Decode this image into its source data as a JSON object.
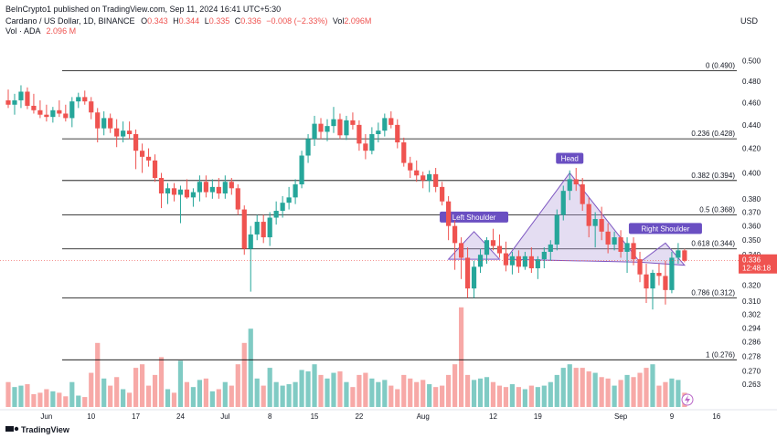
{
  "header": {
    "publisher_line": "BeInCrypto1 published on TradingView.com, Sep 11, 2024 16:41 UTC+5:30",
    "symbol": "Cardano / US Dollar, 1D, BINANCE",
    "ohlc": [
      {
        "key": "O",
        "value": "0.343"
      },
      {
        "key": "H",
        "value": "0.344"
      },
      {
        "key": "L",
        "value": "0.335"
      },
      {
        "key": "C",
        "value": "0.336"
      }
    ],
    "change": "−0.008 (−2.33%)",
    "vol_label": "Vol",
    "vol_value": "2.096M",
    "vol_series_label": "Vol · ADA",
    "vol_series_value": "2.096 M"
  },
  "currency_label": "USD",
  "footer": {
    "brand": "TradingView"
  },
  "colors": {
    "up": "#26a69a",
    "down": "#ef5350",
    "up_volume": "#80cbc4",
    "down_volume": "#f7a9a7",
    "fib_line": "#000000",
    "pattern_fill": "#b39ddb",
    "pattern_stroke": "#7e57c2",
    "label_bg": "#6a4fc2",
    "price_tag": "#ef5350"
  },
  "icons": {
    "logo": "tradingview-logo-icon",
    "indicator": "lightning-icon"
  },
  "chart_data": {
    "type": "candlestick",
    "title": "Cardano / US Dollar, 1D, BINANCE",
    "xlabel": "",
    "ylabel": "USD",
    "y_scale": "log",
    "ylim": [
      0.255,
      0.515
    ],
    "x_ticks": [
      "Jun",
      "10",
      "17",
      "24",
      "Jul",
      "8",
      "15",
      "22",
      "Aug",
      "12",
      "19",
      "Sep",
      "9",
      "16"
    ],
    "y_ticks": [
      "0.500",
      "0.480",
      "0.460",
      "0.440",
      "0.420",
      "0.400",
      "0.380",
      "0.370",
      "0.360",
      "0.350",
      "0.340",
      "0.320",
      "0.310",
      "0.302",
      "0.294",
      "0.286",
      "0.278",
      "0.270",
      "0.263"
    ],
    "current_price": {
      "price": "0.336",
      "countdown": "12:48:18"
    },
    "fib_levels": [
      {
        "ratio": "0",
        "value": 0.49,
        "label": "0 (0.490)"
      },
      {
        "ratio": "0.236",
        "value": 0.428,
        "label": "0.236 (0.428)"
      },
      {
        "ratio": "0.382",
        "value": 0.394,
        "label": "0.382 (0.394)"
      },
      {
        "ratio": "0.5",
        "value": 0.368,
        "label": "0.5 (0.368)"
      },
      {
        "ratio": "0.618",
        "value": 0.344,
        "label": "0.618 (0.344)"
      },
      {
        "ratio": "0.786",
        "value": 0.312,
        "label": "0.786 (0.312)"
      },
      {
        "ratio": "1",
        "value": 0.276,
        "label": "1 (0.276)"
      }
    ],
    "pattern": {
      "name": "head-and-shoulders",
      "labels": [
        "Left Shoulder",
        "Head",
        "Right Shoulder"
      ],
      "left_shoulder": {
        "from": {
          "x": "2024-08-05",
          "y": 0.337
        },
        "peak": {
          "x": "2024-08-09",
          "y": 0.356
        },
        "to": {
          "x": "2024-08-13",
          "y": 0.337
        }
      },
      "head": {
        "from": {
          "x": "2024-08-14",
          "y": 0.337
        },
        "peak": {
          "x": "2024-08-24",
          "y": 0.4
        },
        "to": {
          "x": "2024-09-04",
          "y": 0.335
        }
      },
      "right_shoulder": {
        "from": {
          "x": "2024-09-04",
          "y": 0.335
        },
        "peak": {
          "x": "2024-09-08",
          "y": 0.348
        },
        "to": {
          "x": "2024-09-11",
          "y": 0.333
        }
      }
    },
    "candles": [
      [
        "2024-05-28",
        0.462,
        0.472,
        0.455,
        0.458,
        35
      ],
      [
        "2024-05-29",
        0.458,
        0.468,
        0.449,
        0.462,
        28
      ],
      [
        "2024-05-30",
        0.462,
        0.476,
        0.455,
        0.47,
        30
      ],
      [
        "2024-05-31",
        0.47,
        0.474,
        0.454,
        0.457,
        32
      ],
      [
        "2024-06-01",
        0.457,
        0.468,
        0.45,
        0.453,
        18
      ],
      [
        "2024-06-02",
        0.453,
        0.462,
        0.446,
        0.449,
        20
      ],
      [
        "2024-06-03",
        0.449,
        0.458,
        0.443,
        0.447,
        25
      ],
      [
        "2024-06-04",
        0.447,
        0.456,
        0.442,
        0.453,
        22
      ],
      [
        "2024-06-05",
        0.453,
        0.462,
        0.447,
        0.45,
        20
      ],
      [
        "2024-06-06",
        0.45,
        0.458,
        0.443,
        0.446,
        15
      ],
      [
        "2024-06-07",
        0.446,
        0.465,
        0.438,
        0.461,
        35
      ],
      [
        "2024-06-08",
        0.461,
        0.469,
        0.455,
        0.465,
        16
      ],
      [
        "2024-06-09",
        0.465,
        0.471,
        0.458,
        0.461,
        14
      ],
      [
        "2024-06-10",
        0.461,
        0.465,
        0.445,
        0.451,
        48
      ],
      [
        "2024-06-11",
        0.451,
        0.455,
        0.425,
        0.437,
        90
      ],
      [
        "2024-06-12",
        0.437,
        0.452,
        0.431,
        0.446,
        40
      ],
      [
        "2024-06-13",
        0.446,
        0.45,
        0.433,
        0.437,
        30
      ],
      [
        "2024-06-14",
        0.437,
        0.445,
        0.421,
        0.43,
        42
      ],
      [
        "2024-06-15",
        0.43,
        0.443,
        0.425,
        0.435,
        25
      ],
      [
        "2024-06-16",
        0.435,
        0.443,
        0.428,
        0.432,
        20
      ],
      [
        "2024-06-17",
        0.432,
        0.436,
        0.403,
        0.418,
        55
      ],
      [
        "2024-06-18",
        0.418,
        0.424,
        0.4,
        0.413,
        60
      ],
      [
        "2024-06-19",
        0.413,
        0.42,
        0.405,
        0.41,
        30
      ],
      [
        "2024-06-20",
        0.41,
        0.415,
        0.393,
        0.396,
        45
      ],
      [
        "2024-06-21",
        0.396,
        0.4,
        0.373,
        0.384,
        70
      ],
      [
        "2024-06-22",
        0.384,
        0.392,
        0.376,
        0.388,
        25
      ],
      [
        "2024-06-23",
        0.388,
        0.392,
        0.378,
        0.383,
        20
      ],
      [
        "2024-06-24",
        0.383,
        0.39,
        0.362,
        0.387,
        65
      ],
      [
        "2024-06-25",
        0.387,
        0.395,
        0.38,
        0.381,
        35
      ],
      [
        "2024-06-26",
        0.381,
        0.388,
        0.374,
        0.385,
        28
      ],
      [
        "2024-06-27",
        0.385,
        0.398,
        0.378,
        0.393,
        38
      ],
      [
        "2024-06-28",
        0.393,
        0.398,
        0.381,
        0.385,
        40
      ],
      [
        "2024-06-29",
        0.385,
        0.395,
        0.38,
        0.389,
        22
      ],
      [
        "2024-06-30",
        0.389,
        0.396,
        0.38,
        0.384,
        25
      ],
      [
        "2024-07-01",
        0.384,
        0.398,
        0.38,
        0.393,
        35
      ],
      [
        "2024-07-02",
        0.393,
        0.396,
        0.383,
        0.388,
        30
      ],
      [
        "2024-07-03",
        0.388,
        0.391,
        0.368,
        0.372,
        60
      ],
      [
        "2024-07-04",
        0.372,
        0.375,
        0.34,
        0.344,
        90
      ],
      [
        "2024-07-05",
        0.344,
        0.36,
        0.316,
        0.354,
        110
      ],
      [
        "2024-07-06",
        0.354,
        0.368,
        0.35,
        0.363,
        40
      ],
      [
        "2024-07-07",
        0.363,
        0.368,
        0.348,
        0.352,
        30
      ],
      [
        "2024-07-08",
        0.352,
        0.37,
        0.346,
        0.366,
        55
      ],
      [
        "2024-07-09",
        0.366,
        0.378,
        0.361,
        0.371,
        35
      ],
      [
        "2024-07-10",
        0.371,
        0.382,
        0.366,
        0.377,
        30
      ],
      [
        "2024-07-11",
        0.377,
        0.389,
        0.372,
        0.381,
        32
      ],
      [
        "2024-07-12",
        0.381,
        0.395,
        0.376,
        0.391,
        35
      ],
      [
        "2024-07-13",
        0.391,
        0.418,
        0.388,
        0.414,
        52
      ],
      [
        "2024-07-14",
        0.414,
        0.432,
        0.408,
        0.428,
        50
      ],
      [
        "2024-07-15",
        0.428,
        0.448,
        0.422,
        0.441,
        60
      ],
      [
        "2024-07-16",
        0.441,
        0.446,
        0.428,
        0.434,
        45
      ],
      [
        "2024-07-17",
        0.434,
        0.445,
        0.426,
        0.439,
        40
      ],
      [
        "2024-07-18",
        0.439,
        0.456,
        0.433,
        0.445,
        48
      ],
      [
        "2024-07-19",
        0.445,
        0.45,
        0.428,
        0.431,
        50
      ],
      [
        "2024-07-20",
        0.431,
        0.448,
        0.427,
        0.444,
        35
      ],
      [
        "2024-07-21",
        0.444,
        0.451,
        0.436,
        0.44,
        28
      ],
      [
        "2024-07-22",
        0.44,
        0.444,
        0.418,
        0.424,
        45
      ],
      [
        "2024-07-23",
        0.424,
        0.432,
        0.411,
        0.418,
        48
      ],
      [
        "2024-07-24",
        0.418,
        0.438,
        0.415,
        0.432,
        40
      ],
      [
        "2024-07-25",
        0.432,
        0.442,
        0.425,
        0.435,
        35
      ],
      [
        "2024-07-26",
        0.435,
        0.45,
        0.43,
        0.446,
        38
      ],
      [
        "2024-07-27",
        0.446,
        0.452,
        0.437,
        0.44,
        30
      ],
      [
        "2024-07-28",
        0.44,
        0.445,
        0.42,
        0.425,
        25
      ],
      [
        "2024-07-29",
        0.425,
        0.429,
        0.405,
        0.408,
        45
      ],
      [
        "2024-07-30",
        0.408,
        0.413,
        0.396,
        0.402,
        40
      ],
      [
        "2024-07-31",
        0.402,
        0.41,
        0.393,
        0.398,
        35
      ],
      [
        "2024-08-01",
        0.398,
        0.401,
        0.388,
        0.394,
        38
      ],
      [
        "2024-08-02",
        0.394,
        0.402,
        0.385,
        0.399,
        32
      ],
      [
        "2024-08-03",
        0.399,
        0.404,
        0.385,
        0.389,
        28
      ],
      [
        "2024-08-04",
        0.389,
        0.393,
        0.375,
        0.378,
        30
      ],
      [
        "2024-08-05",
        0.378,
        0.382,
        0.35,
        0.36,
        45
      ],
      [
        "2024-08-06",
        0.36,
        0.364,
        0.33,
        0.348,
        60
      ],
      [
        "2024-08-07",
        0.348,
        0.352,
        0.324,
        0.338,
        140
      ],
      [
        "2024-08-08",
        0.338,
        0.345,
        0.312,
        0.318,
        45
      ],
      [
        "2024-08-09",
        0.318,
        0.336,
        0.312,
        0.332,
        38
      ],
      [
        "2024-08-10",
        0.332,
        0.344,
        0.328,
        0.34,
        40
      ],
      [
        "2024-08-11",
        0.34,
        0.352,
        0.334,
        0.35,
        42
      ],
      [
        "2024-08-12",
        0.35,
        0.358,
        0.343,
        0.346,
        35
      ],
      [
        "2024-08-13",
        0.346,
        0.354,
        0.338,
        0.341,
        30
      ],
      [
        "2024-08-14",
        0.341,
        0.349,
        0.329,
        0.333,
        28
      ],
      [
        "2024-08-15",
        0.333,
        0.342,
        0.327,
        0.339,
        32
      ],
      [
        "2024-08-16",
        0.339,
        0.343,
        0.328,
        0.332,
        28
      ],
      [
        "2024-08-17",
        0.332,
        0.342,
        0.33,
        0.339,
        25
      ],
      [
        "2024-08-18",
        0.339,
        0.345,
        0.328,
        0.331,
        30
      ],
      [
        "2024-08-19",
        0.331,
        0.339,
        0.324,
        0.337,
        28
      ],
      [
        "2024-08-20",
        0.337,
        0.345,
        0.331,
        0.342,
        30
      ],
      [
        "2024-08-21",
        0.342,
        0.35,
        0.336,
        0.347,
        35
      ],
      [
        "2024-08-22",
        0.347,
        0.372,
        0.343,
        0.368,
        45
      ],
      [
        "2024-08-23",
        0.368,
        0.39,
        0.364,
        0.386,
        55
      ],
      [
        "2024-08-24",
        0.386,
        0.402,
        0.379,
        0.395,
        60
      ],
      [
        "2024-08-25",
        0.395,
        0.404,
        0.386,
        0.391,
        55
      ],
      [
        "2024-08-26",
        0.391,
        0.396,
        0.371,
        0.376,
        55
      ],
      [
        "2024-08-27",
        0.376,
        0.381,
        0.352,
        0.36,
        50
      ],
      [
        "2024-08-28",
        0.36,
        0.37,
        0.345,
        0.365,
        48
      ],
      [
        "2024-08-29",
        0.365,
        0.374,
        0.35,
        0.356,
        42
      ],
      [
        "2024-08-30",
        0.356,
        0.362,
        0.341,
        0.347,
        40
      ],
      [
        "2024-08-31",
        0.347,
        0.356,
        0.343,
        0.352,
        30
      ],
      [
        "2024-09-01",
        0.352,
        0.357,
        0.338,
        0.342,
        38
      ],
      [
        "2024-09-02",
        0.342,
        0.352,
        0.328,
        0.348,
        45
      ],
      [
        "2024-09-03",
        0.348,
        0.352,
        0.333,
        0.337,
        42
      ],
      [
        "2024-09-04",
        0.337,
        0.342,
        0.322,
        0.327,
        48
      ],
      [
        "2024-09-05",
        0.327,
        0.334,
        0.309,
        0.318,
        55
      ],
      [
        "2024-09-06",
        0.318,
        0.33,
        0.305,
        0.328,
        60
      ],
      [
        "2024-09-07",
        0.328,
        0.334,
        0.32,
        0.326,
        30
      ],
      [
        "2024-09-08",
        0.326,
        0.336,
        0.308,
        0.317,
        35
      ],
      [
        "2024-09-09",
        0.317,
        0.342,
        0.315,
        0.338,
        40
      ],
      [
        "2024-09-10",
        0.338,
        0.348,
        0.334,
        0.343,
        38
      ],
      [
        "2024-09-11",
        0.343,
        0.344,
        0.335,
        0.336,
        20
      ]
    ]
  }
}
